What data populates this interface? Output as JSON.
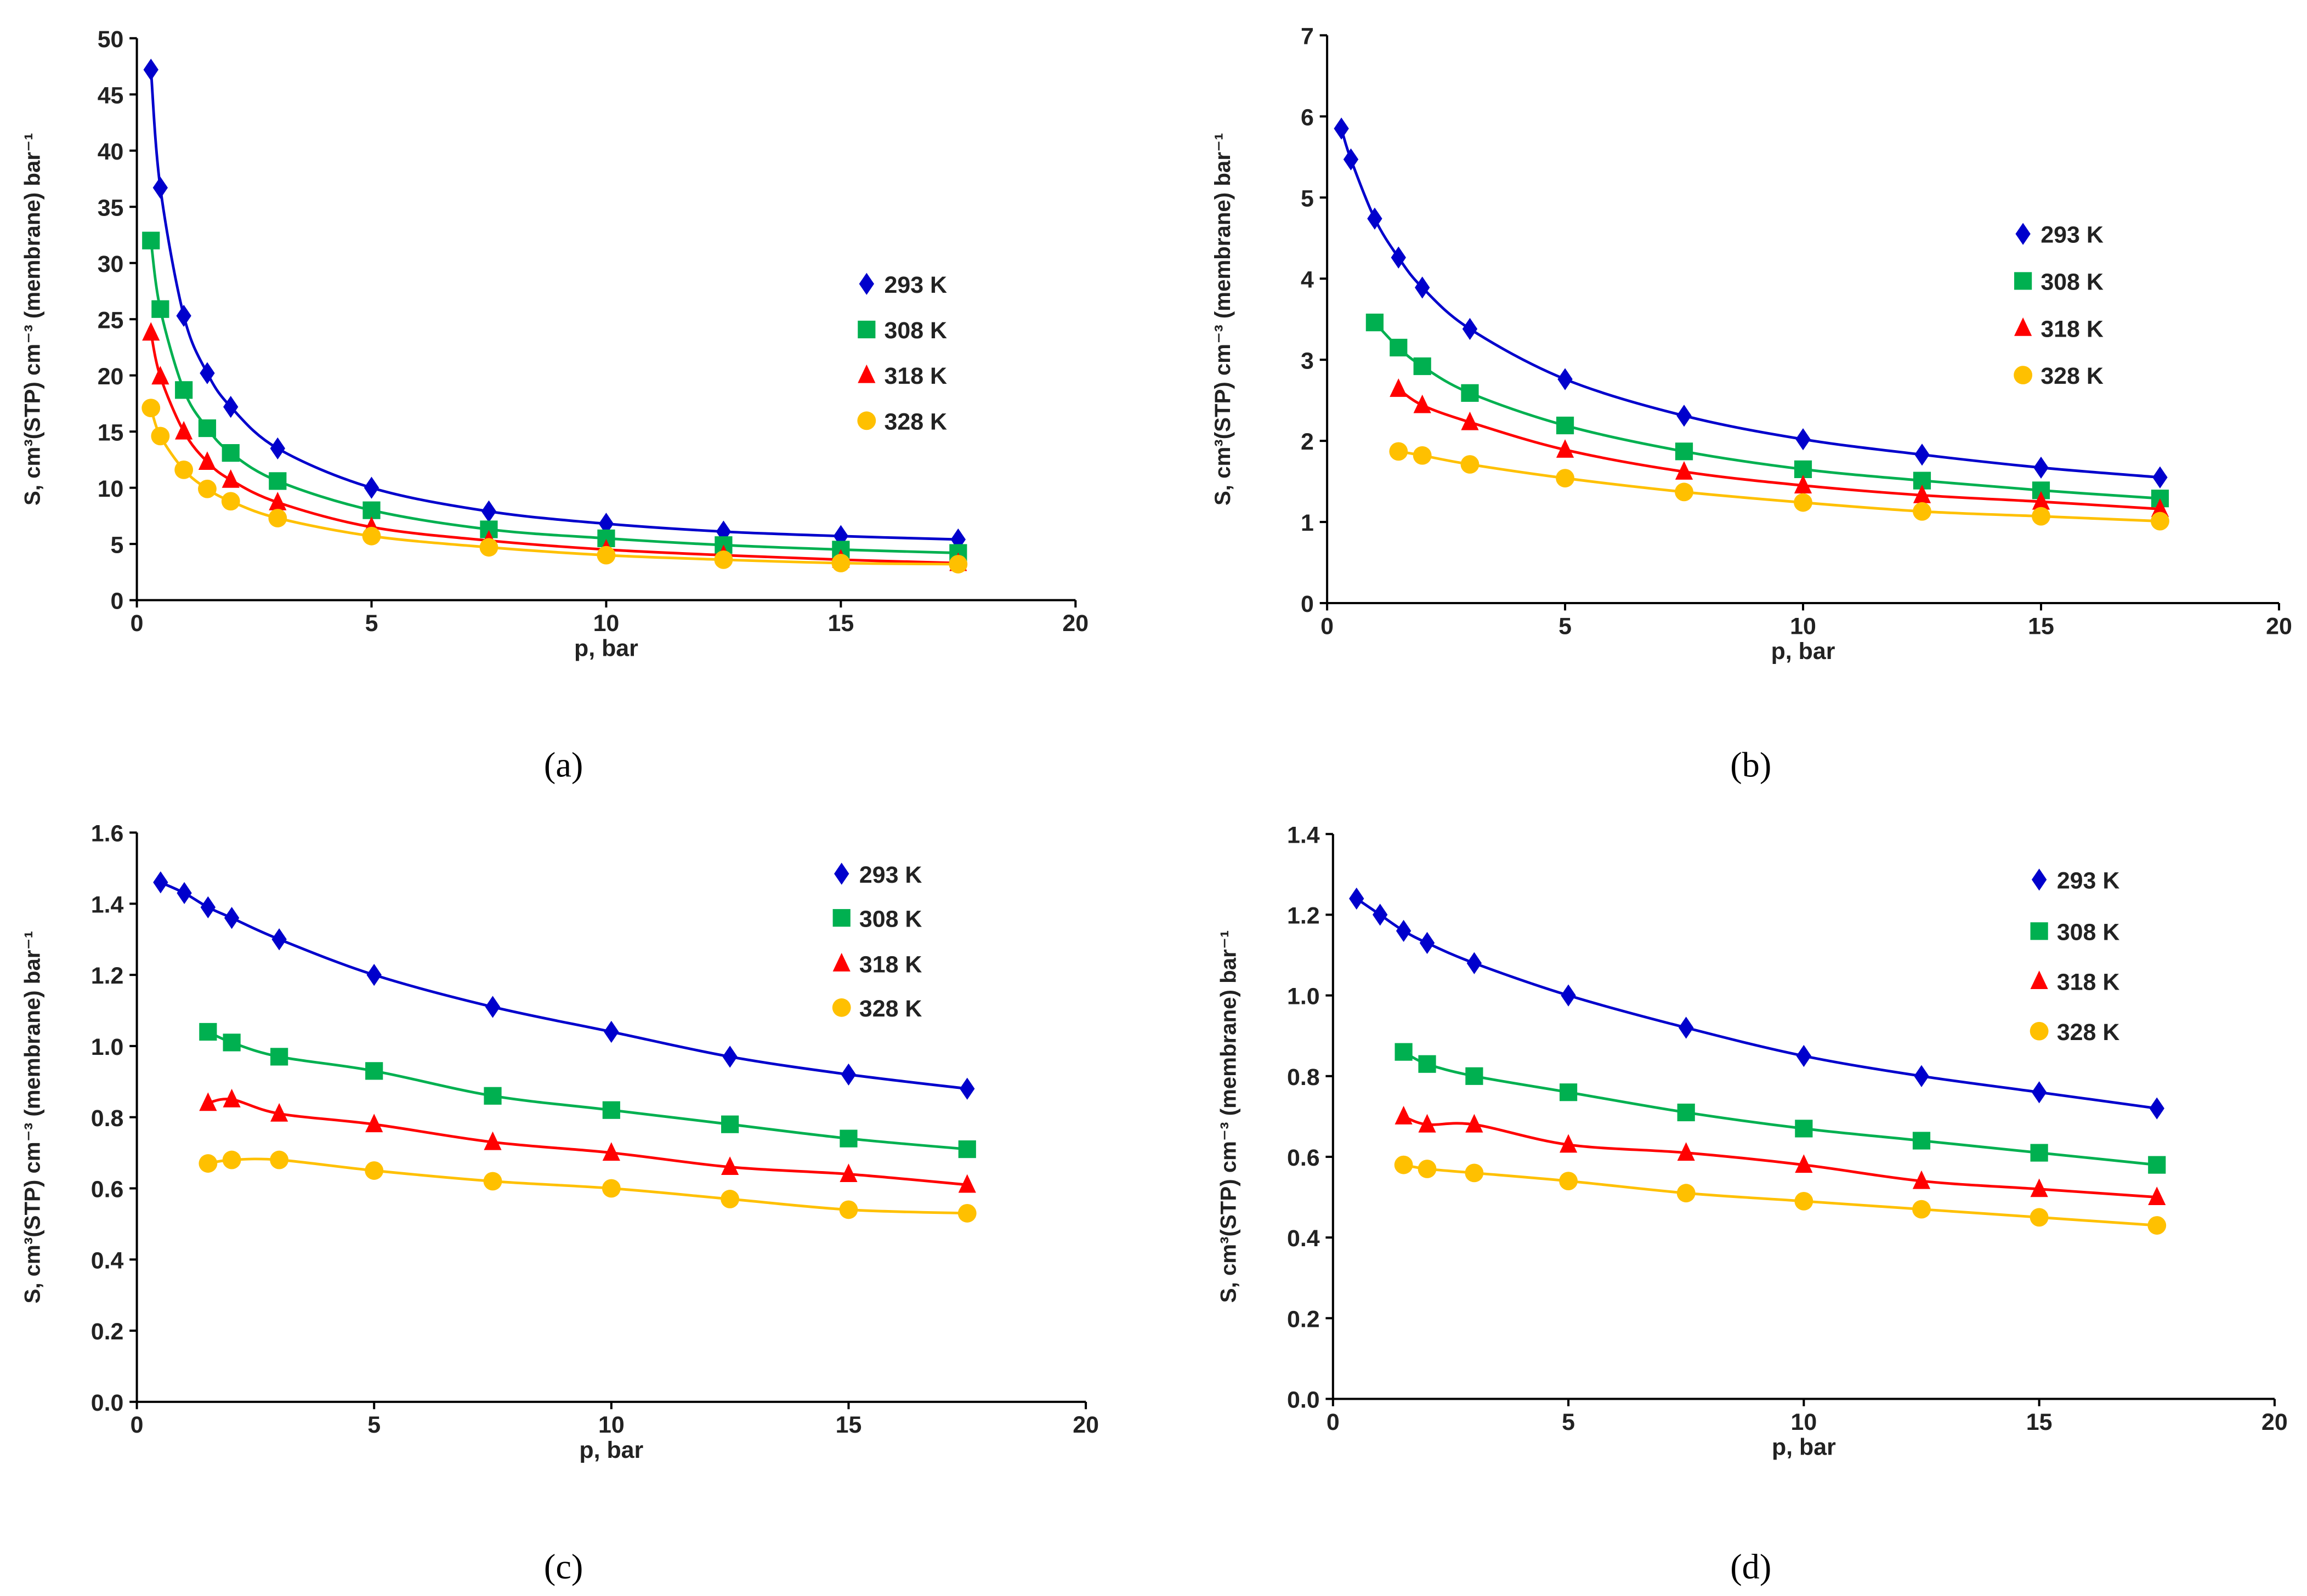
{
  "chart_data": [
    {
      "type": "scatter",
      "panel_label": "(a)",
      "xlabel": "p, bar",
      "ylabel": "S, cm³(STP) cm⁻³ (membrane) bar⁻¹",
      "xlim": [
        0,
        20
      ],
      "xticks": [
        0,
        5,
        10,
        15,
        20
      ],
      "ylim": [
        0,
        50
      ],
      "yticks": [
        0,
        5,
        10,
        15,
        20,
        25,
        30,
        35,
        40,
        45,
        50
      ],
      "ytick_decimals": 0,
      "legend_position": "center-right",
      "series": [
        {
          "name": "293 K",
          "marker": "diamond",
          "color": "#0000CC",
          "x": [
            0.3,
            0.5,
            1,
            1.5,
            2,
            3,
            5,
            7.5,
            10,
            12.5,
            15,
            17.5
          ],
          "y": [
            47.2,
            36.7,
            25.3,
            20.2,
            17.2,
            13.5,
            10.0,
            7.9,
            6.8,
            6.1,
            5.7,
            5.4
          ]
        },
        {
          "name": "308 K",
          "marker": "square",
          "color": "#00B050",
          "x": [
            0.3,
            0.5,
            1,
            1.5,
            2,
            3,
            5,
            7.5,
            10,
            12.5,
            15,
            17.5
          ],
          "y": [
            32.0,
            25.9,
            18.7,
            15.3,
            13.1,
            10.6,
            8.0,
            6.3,
            5.5,
            4.9,
            4.5,
            4.2
          ]
        },
        {
          "name": "318 K",
          "marker": "triangle",
          "color": "#FF0000",
          "x": [
            0.3,
            0.5,
            1,
            1.5,
            2,
            3,
            5,
            7.5,
            10,
            12.5,
            15,
            17.5
          ],
          "y": [
            23.8,
            19.9,
            15.0,
            12.3,
            10.7,
            8.7,
            6.5,
            5.3,
            4.5,
            4.0,
            3.6,
            3.3
          ]
        },
        {
          "name": "328 K",
          "marker": "circle",
          "color": "#FFC000",
          "x": [
            0.3,
            0.5,
            1,
            1.5,
            2,
            3,
            5,
            7.5,
            10,
            12.5,
            15,
            17.5
          ],
          "y": [
            17.1,
            14.6,
            11.6,
            9.9,
            8.8,
            7.3,
            5.7,
            4.7,
            4.0,
            3.6,
            3.3,
            3.2
          ]
        }
      ]
    },
    {
      "type": "scatter",
      "panel_label": "(b)",
      "xlabel": "p, bar",
      "ylabel": "S, cm³(STP) cm⁻³ (membrane) bar⁻¹",
      "xlim": [
        0,
        20
      ],
      "xticks": [
        0,
        5,
        10,
        15,
        20
      ],
      "ylim": [
        0,
        7
      ],
      "yticks": [
        0,
        1,
        2,
        3,
        4,
        5,
        6,
        7
      ],
      "ytick_decimals": 0,
      "legend_position": "upper-right",
      "series": [
        {
          "name": "293 K",
          "marker": "diamond",
          "color": "#0000CC",
          "x": [
            0.3,
            0.5,
            1,
            1.5,
            2,
            3,
            5,
            7.5,
            10,
            12.5,
            15,
            17.5
          ],
          "y": [
            5.85,
            5.47,
            4.74,
            4.26,
            3.89,
            3.38,
            2.76,
            2.31,
            2.02,
            1.83,
            1.67,
            1.55
          ]
        },
        {
          "name": "308 K",
          "marker": "square",
          "color": "#00B050",
          "x": [
            1,
            1.5,
            2,
            3,
            5,
            7.5,
            10,
            12.5,
            15,
            17.5
          ],
          "y": [
            3.46,
            3.15,
            2.92,
            2.59,
            2.19,
            1.87,
            1.65,
            1.51,
            1.39,
            1.29
          ]
        },
        {
          "name": "318 K",
          "marker": "triangle",
          "color": "#FF0000",
          "x": [
            1.5,
            2,
            3,
            5,
            7.5,
            10,
            12.5,
            15,
            17.5
          ],
          "y": [
            2.64,
            2.44,
            2.23,
            1.89,
            1.62,
            1.45,
            1.33,
            1.25,
            1.16
          ]
        },
        {
          "name": "328 K",
          "marker": "circle",
          "color": "#FFC000",
          "x": [
            1.5,
            2,
            3,
            5,
            7.5,
            10,
            12.5,
            15,
            17.5
          ],
          "y": [
            1.87,
            1.82,
            1.71,
            1.54,
            1.37,
            1.24,
            1.13,
            1.07,
            1.01
          ]
        }
      ]
    },
    {
      "type": "scatter",
      "panel_label": "(c)",
      "xlabel": "p, bar",
      "ylabel": "S, cm³(STP) cm⁻³ (membrane) bar⁻¹",
      "xlim": [
        0,
        20
      ],
      "xticks": [
        0,
        5,
        10,
        15,
        20
      ],
      "ylim": [
        0,
        1.6
      ],
      "yticks": [
        0,
        0.2,
        0.4,
        0.6,
        0.8,
        1.0,
        1.2,
        1.4,
        1.6
      ],
      "ytick_decimals": 1,
      "legend_position": "upper-right",
      "series": [
        {
          "name": "293 K",
          "marker": "diamond",
          "color": "#0000CC",
          "x": [
            0.5,
            1,
            1.5,
            2,
            3,
            5,
            7.5,
            10,
            12.5,
            15,
            17.5
          ],
          "y": [
            1.46,
            1.43,
            1.39,
            1.36,
            1.3,
            1.2,
            1.11,
            1.04,
            0.97,
            0.92,
            0.88
          ]
        },
        {
          "name": "308 K",
          "marker": "square",
          "color": "#00B050",
          "x": [
            1.5,
            2,
            3,
            5,
            7.5,
            10,
            12.5,
            15,
            17.5
          ],
          "y": [
            1.04,
            1.01,
            0.97,
            0.93,
            0.86,
            0.82,
            0.78,
            0.74,
            0.71
          ]
        },
        {
          "name": "318 K",
          "marker": "triangle",
          "color": "#FF0000",
          "x": [
            1.5,
            2,
            3,
            5,
            7.5,
            10,
            12.5,
            15,
            17.5
          ],
          "y": [
            0.84,
            0.85,
            0.81,
            0.78,
            0.73,
            0.7,
            0.66,
            0.64,
            0.61
          ]
        },
        {
          "name": "328 K",
          "marker": "circle",
          "color": "#FFC000",
          "x": [
            1.5,
            2,
            3,
            5,
            7.5,
            10,
            12.5,
            15,
            17.5
          ],
          "y": [
            0.67,
            0.68,
            0.68,
            0.65,
            0.62,
            0.6,
            0.57,
            0.54,
            0.53
          ]
        }
      ]
    },
    {
      "type": "scatter",
      "panel_label": "(d)",
      "xlabel": "p, bar",
      "ylabel": "S, cm³(STP) cm⁻³ (membrane) bar⁻¹",
      "xlim": [
        0,
        20
      ],
      "xticks": [
        0,
        5,
        10,
        15,
        20
      ],
      "ylim": [
        0,
        1.4
      ],
      "yticks": [
        0,
        0.2,
        0.4,
        0.6,
        0.8,
        1.0,
        1.2,
        1.4
      ],
      "ytick_decimals": 1,
      "legend_position": "upper-right",
      "series": [
        {
          "name": "293 K",
          "marker": "diamond",
          "color": "#0000CC",
          "x": [
            0.5,
            1,
            1.5,
            2,
            3,
            5,
            7.5,
            10,
            12.5,
            15,
            17.5
          ],
          "y": [
            1.24,
            1.2,
            1.16,
            1.13,
            1.08,
            1.0,
            0.92,
            0.85,
            0.8,
            0.76,
            0.72
          ]
        },
        {
          "name": "308 K",
          "marker": "square",
          "color": "#00B050",
          "x": [
            1.5,
            2,
            3,
            5,
            7.5,
            10,
            12.5,
            15,
            17.5
          ],
          "y": [
            0.86,
            0.83,
            0.8,
            0.76,
            0.71,
            0.67,
            0.64,
            0.61,
            0.58
          ]
        },
        {
          "name": "318 K",
          "marker": "triangle",
          "color": "#FF0000",
          "x": [
            1.5,
            2,
            3,
            5,
            7.5,
            10,
            12.5,
            15,
            17.5
          ],
          "y": [
            0.7,
            0.68,
            0.68,
            0.63,
            0.61,
            0.58,
            0.54,
            0.52,
            0.5
          ]
        },
        {
          "name": "328 K",
          "marker": "circle",
          "color": "#FFC000",
          "x": [
            1.5,
            2,
            3,
            5,
            7.5,
            10,
            12.5,
            15,
            17.5
          ],
          "y": [
            0.58,
            0.57,
            0.56,
            0.54,
            0.51,
            0.49,
            0.47,
            0.45,
            0.43
          ]
        }
      ]
    }
  ]
}
